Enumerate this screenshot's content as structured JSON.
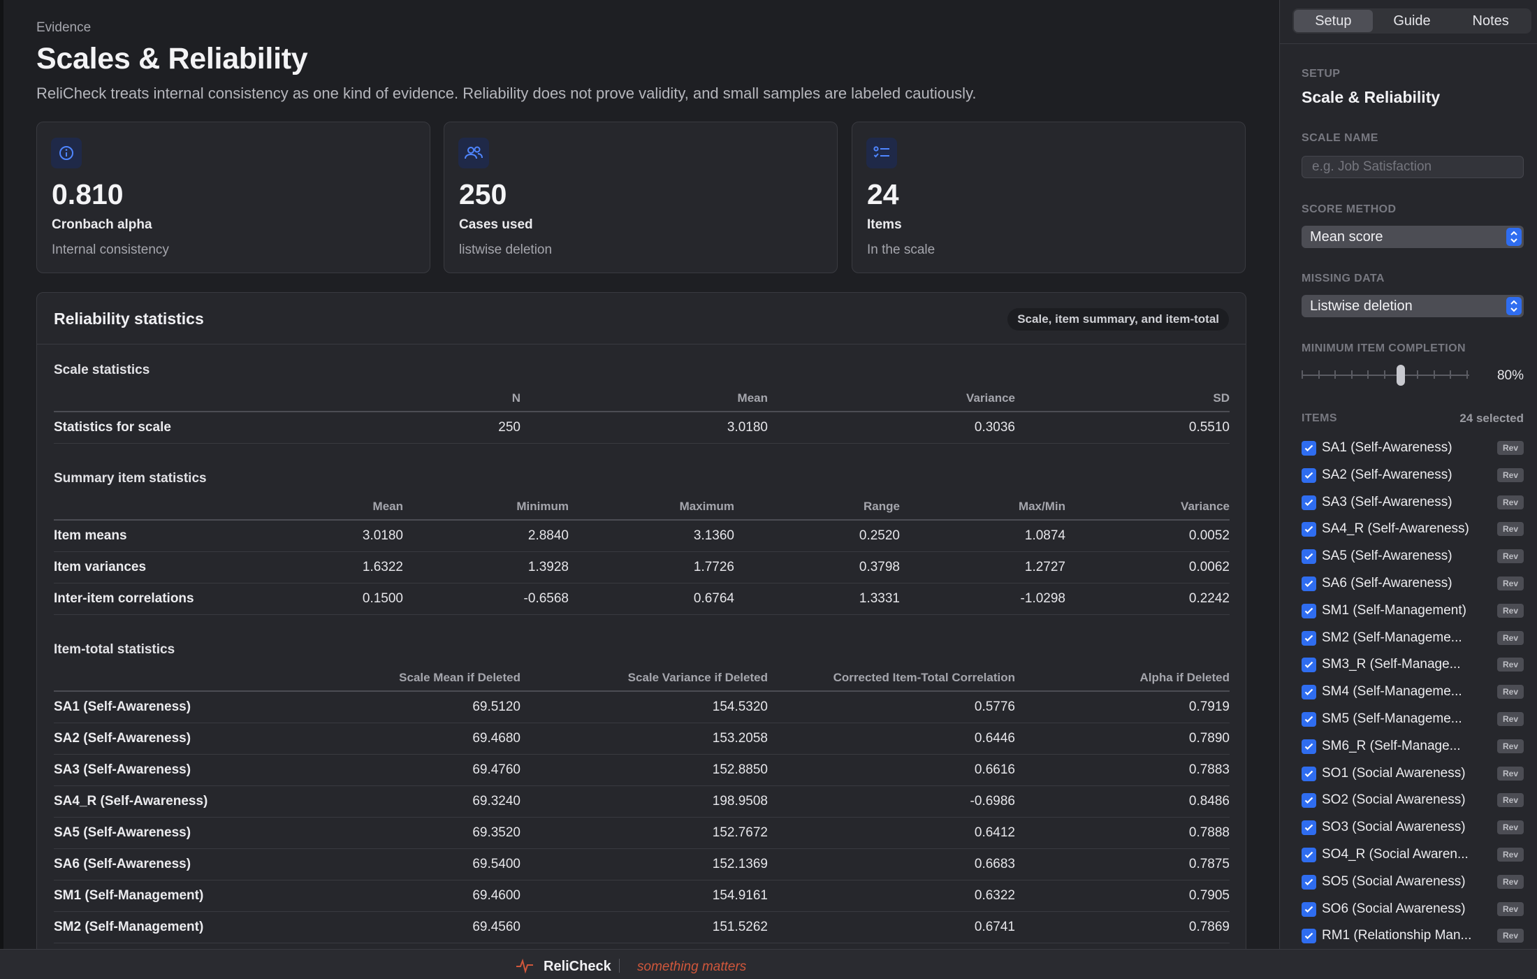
{
  "header": {
    "eyebrow": "Evidence",
    "title": "Scales & Reliability",
    "subtitle": "ReliCheck treats internal consistency as one kind of evidence. Reliability does not prove validity, and small samples are labeled cautiously."
  },
  "kpis": [
    {
      "value": "0.810",
      "label": "Cronbach alpha",
      "sub": "Internal consistency",
      "icon": "info-icon"
    },
    {
      "value": "250",
      "label": "Cases used",
      "sub": "listwise deletion",
      "icon": "users-icon"
    },
    {
      "value": "24",
      "label": "Items",
      "sub": "In the scale",
      "icon": "list-icon"
    }
  ],
  "panel": {
    "title": "Reliability statistics",
    "pill": "Scale, item summary, and item-total"
  },
  "scale_stats": {
    "title": "Scale statistics",
    "columns": [
      "",
      "N",
      "Mean",
      "Variance",
      "SD"
    ],
    "rows": [
      [
        "Statistics for scale",
        "250",
        "3.0180",
        "0.3036",
        "0.5510"
      ]
    ]
  },
  "summary_stats": {
    "title": "Summary item statistics",
    "columns": [
      "",
      "Mean",
      "Minimum",
      "Maximum",
      "Range",
      "Max/Min",
      "Variance"
    ],
    "rows": [
      [
        "Item means",
        "3.0180",
        "2.8840",
        "3.1360",
        "0.2520",
        "1.0874",
        "0.0052"
      ],
      [
        "Item variances",
        "1.6322",
        "1.3928",
        "1.7726",
        "0.3798",
        "1.2727",
        "0.0062"
      ],
      [
        "Inter-item correlations",
        "0.1500",
        "-0.6568",
        "0.6764",
        "1.3331",
        "-1.0298",
        "0.2242"
      ]
    ]
  },
  "item_total": {
    "title": "Item-total statistics",
    "columns": [
      "",
      "Scale Mean if Deleted",
      "Scale Variance if Deleted",
      "Corrected Item-Total Correlation",
      "Alpha if Deleted"
    ],
    "rows": [
      [
        "SA1 (Self-Awareness)",
        "69.5120",
        "154.5320",
        "0.5776",
        "0.7919"
      ],
      [
        "SA2 (Self-Awareness)",
        "69.4680",
        "153.2058",
        "0.6446",
        "0.7890"
      ],
      [
        "SA3 (Self-Awareness)",
        "69.4760",
        "152.8850",
        "0.6616",
        "0.7883"
      ],
      [
        "SA4_R (Self-Awareness)",
        "69.3240",
        "198.9508",
        "-0.6986",
        "0.8486"
      ],
      [
        "SA5 (Self-Awareness)",
        "69.3520",
        "152.7672",
        "0.6412",
        "0.7888"
      ],
      [
        "SA6 (Self-Awareness)",
        "69.5400",
        "152.1369",
        "0.6683",
        "0.7875"
      ],
      [
        "SM1 (Self-Management)",
        "69.4600",
        "154.9161",
        "0.6322",
        "0.7905"
      ],
      [
        "SM2 (Self-Management)",
        "69.4560",
        "151.5262",
        "0.6741",
        "0.7869"
      ]
    ]
  },
  "footer": {
    "brand": "ReliCheck",
    "tagline": "something matters"
  },
  "sidebar": {
    "tabs": [
      "Setup",
      "Guide",
      "Notes"
    ],
    "active_tab": "Setup",
    "section_caption": "SETUP",
    "section_title": "Scale & Reliability",
    "scale_name_caption": "SCALE NAME",
    "scale_name_placeholder": "e.g. Job Satisfaction",
    "score_method_caption": "SCORE METHOD",
    "score_method_value": "Mean score",
    "missing_caption": "MISSING DATA",
    "missing_value": "Listwise deletion",
    "min_completion_caption": "MINIMUM ITEM COMPLETION",
    "min_completion_value": "80%",
    "min_completion_fraction": 0.6,
    "items_caption": "ITEMS",
    "items_count": "24 selected",
    "rev_label": "Rev",
    "items": [
      "SA1 (Self-Awareness)",
      "SA2 (Self-Awareness)",
      "SA3 (Self-Awareness)",
      "SA4_R (Self-Awareness)",
      "SA5 (Self-Awareness)",
      "SA6 (Self-Awareness)",
      "SM1 (Self-Management)",
      "SM2 (Self-Manageme...",
      "SM3_R (Self-Manage...",
      "SM4 (Self-Manageme...",
      "SM5 (Self-Manageme...",
      "SM6_R (Self-Manage...",
      "SO1 (Social Awareness)",
      "SO2 (Social Awareness)",
      "SO3 (Social Awareness)",
      "SO4_R (Social Awaren...",
      "SO5 (Social Awareness)",
      "SO6 (Social Awareness)",
      "RM1 (Relationship Man..."
    ]
  },
  "colors": {
    "accent": "#2f6df0",
    "tagline": "#d0573b",
    "background": "#1e1f23",
    "card": "#26272c"
  }
}
